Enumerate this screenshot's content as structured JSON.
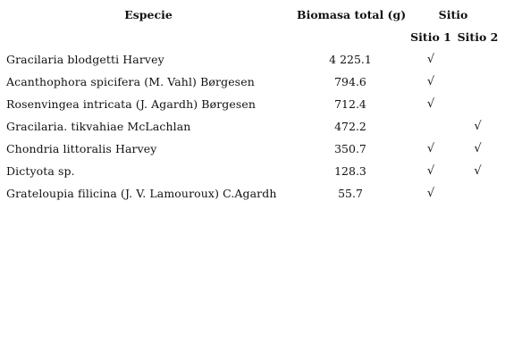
{
  "headers": {
    "especie": "Especie",
    "biomasa": "Biomasa total (g)",
    "sitio": "Sitio",
    "sitio1": "Sitio 1",
    "sitio2": "Sitio 2"
  },
  "check_mark": "√",
  "rows": [
    {
      "especie": "Gracilaria blodgetti Harvey",
      "biomasa": "4 225.1",
      "sitio1": true,
      "sitio2": false
    },
    {
      "especie": "Acanthophora spicifera (M. Vahl) Børgesen",
      "biomasa": "794.6",
      "sitio1": true,
      "sitio2": false
    },
    {
      "especie": "Rosenvingea intricata (J. Agardh) Børgesen",
      "biomasa": "712.4",
      "sitio1": true,
      "sitio2": false
    },
    {
      "especie": "Gracilaria. tikvahiae McLachlan",
      "biomasa": "472.2",
      "sitio1": false,
      "sitio2": true
    },
    {
      "especie": "Chondria littoralis Harvey",
      "biomasa": "350.7",
      "sitio1": true,
      "sitio2": true
    },
    {
      "especie": "Dictyota sp.",
      "biomasa": "128.3",
      "sitio1": true,
      "sitio2": true
    },
    {
      "especie": "Grateloupia filicina (J. V. Lamouroux) C.Agardh",
      "biomasa": "55.7",
      "sitio1": true,
      "sitio2": false
    }
  ]
}
